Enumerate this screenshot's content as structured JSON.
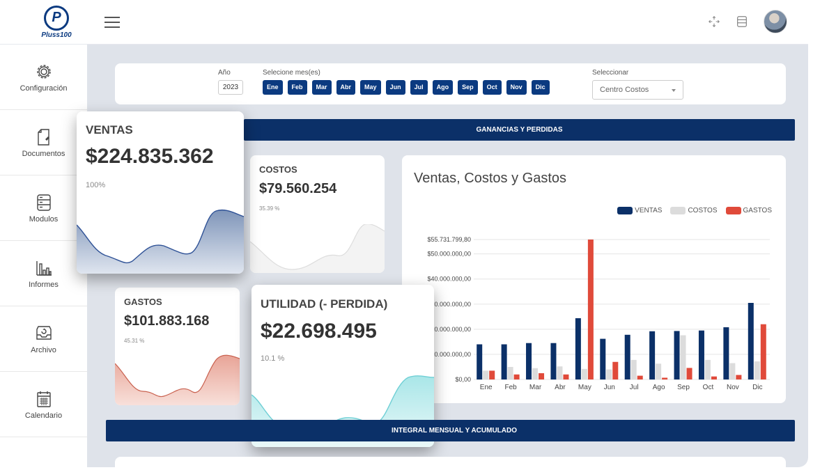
{
  "brand": {
    "logo_letter": "P",
    "name": "Pluss100"
  },
  "topbar": {
    "icons": [
      "fullscreen-icon",
      "server-icon",
      "user-avatar"
    ]
  },
  "sidebar": {
    "items": [
      {
        "label": "Configuración",
        "icon": "gear-icon"
      },
      {
        "label": "Documentos",
        "icon": "document-icon"
      },
      {
        "label": "Modulos",
        "icon": "server-icon"
      },
      {
        "label": "Informes",
        "icon": "bar-chart-icon"
      },
      {
        "label": "Archivo",
        "icon": "archive-box-icon"
      },
      {
        "label": "Calendario",
        "icon": "calendar-icon"
      }
    ]
  },
  "filters": {
    "year_label": "Año",
    "year_value": "2023",
    "months_label": "Selecione mes(es)",
    "months": [
      "Ene",
      "Feb",
      "Mar",
      "Abr",
      "May",
      "Jun",
      "Jul",
      "Ago",
      "Sep",
      "Oct",
      "Nov",
      "Dic"
    ],
    "select_label": "Seleccionar",
    "select_value": "Centro Costos"
  },
  "bands": {
    "pyg": "GANANCIAS Y PERDIDAS",
    "integral": "INTEGRAL MENSUAL Y ACUMULADO"
  },
  "kpis": {
    "ventas": {
      "title": "VENTAS",
      "value": "$224.835.362",
      "pct": "100%",
      "color": "#3b5fa0"
    },
    "costos": {
      "title": "COSTOS",
      "value": "$79.560.254",
      "pct": "35.39 %",
      "color": "#cfcfcf"
    },
    "gastos": {
      "title": "GASTOS",
      "value": "$101.883.168",
      "pct": "45.31 %",
      "color": "#e07a6a"
    },
    "utilidad": {
      "title": "UTILIDAD (- PERDIDA)",
      "value": "$22.698.495",
      "pct": "10.1 %",
      "color": "#7fd3d8"
    }
  },
  "chart_data": {
    "type": "bar",
    "title": "Ventas, Costos y Gastos",
    "categories": [
      "Ene",
      "Feb",
      "Mar",
      "Abr",
      "May",
      "Jun",
      "Jul",
      "Ago",
      "Sep",
      "Oct",
      "Nov",
      "Dic"
    ],
    "series": [
      {
        "name": "VENTAS",
        "color": "#0b3068",
        "values": [
          14000000,
          14000000,
          14500000,
          14500000,
          24400000,
          16200000,
          17800000,
          19200000,
          19300000,
          19500000,
          20800000,
          30500000
        ]
      },
      {
        "name": "COSTOS",
        "color": "#dcdcdc",
        "values": [
          3500000,
          5000000,
          4500000,
          5200000,
          4200000,
          4000000,
          7800000,
          6300000,
          17600000,
          7800000,
          6500000,
          7200000
        ]
      },
      {
        "name": "GASTOS",
        "color": "#e04a3a",
        "values": [
          3500000,
          2000000,
          2500000,
          2000000,
          55731799.8,
          7000000,
          1500000,
          700000,
          4600000,
          1200000,
          1800000,
          22000000
        ]
      }
    ],
    "ylim": [
      0,
      55731799.8
    ],
    "y_tick_labels": [
      {
        "label": "$55.731.799,80",
        "value": 55731799.8
      },
      {
        "label": "$50.000.000,00",
        "value": 50000000
      },
      {
        "label": "$40.000.000,00",
        "value": 40000000
      },
      {
        "label": "$30.000.000,00",
        "value": 30000000
      },
      {
        "label": "$20.000.000,00",
        "value": 20000000
      },
      {
        "label": "$10.000.000,00",
        "value": 10000000
      },
      {
        "label": "$0,00",
        "value": 0
      }
    ],
    "legend": "top-right",
    "grid": true
  }
}
